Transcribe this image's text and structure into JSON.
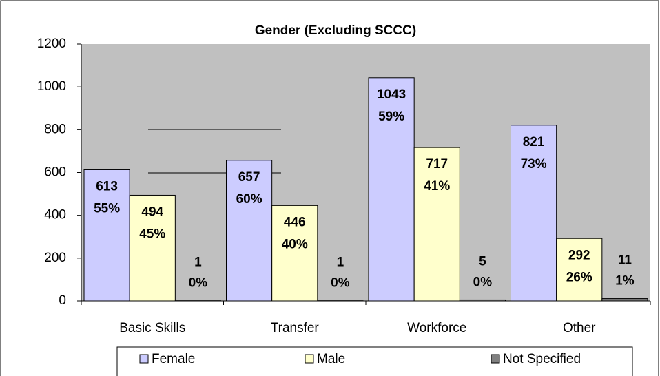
{
  "chart_data": {
    "type": "bar",
    "title": "Gender (Excluding SCCC)",
    "categories": [
      "Basic Skills",
      "Transfer",
      "Workforce",
      "Other"
    ],
    "series": [
      {
        "name": "Female",
        "color": "#ccccff",
        "values": [
          613,
          657,
          1043,
          821
        ],
        "share_labels": [
          "55%",
          "60%",
          "59%",
          "73%"
        ]
      },
      {
        "name": "Male",
        "color": "#ffffcc",
        "values": [
          494,
          446,
          717,
          292
        ],
        "share_labels": [
          "45%",
          "40%",
          "41%",
          "26%"
        ]
      },
      {
        "name": "Not Specified",
        "color": "#808080",
        "values": [
          1,
          1,
          5,
          11
        ],
        "share_labels": [
          "0%",
          "0%",
          "0%",
          "1%"
        ]
      }
    ],
    "ylim": [
      0,
      1200
    ],
    "yticks": [
      0,
      200,
      400,
      600,
      800,
      1000,
      1200
    ],
    "plot_background": "#c0c0c0",
    "legend": "bottom"
  }
}
